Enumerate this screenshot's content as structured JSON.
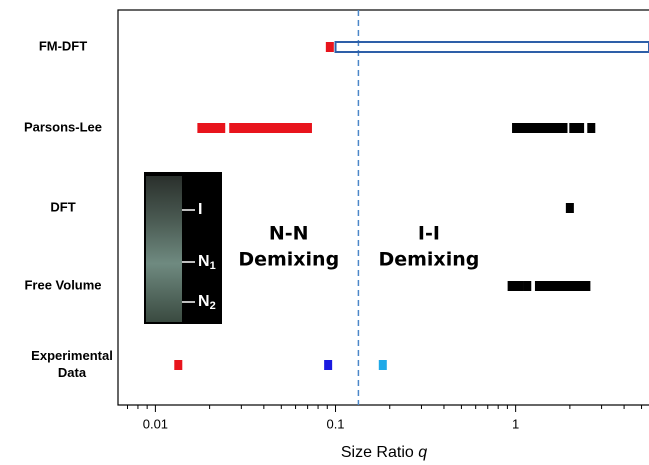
{
  "chart_data": {
    "type": "range-dot",
    "categories": [
      "FM-DFT",
      "Parsons-Lee",
      "DFT",
      "Free Volume",
      [
        "Experimental",
        "Data"
      ]
    ],
    "xlabel": {
      "text": "Size Ratio",
      "variable": "q"
    },
    "xscale": "log",
    "xlim": [
      0.0062,
      5.5
    ],
    "xticks": [
      0.01,
      0.1,
      1
    ],
    "threshold": {
      "x": 0.134,
      "color": "#4a86c8"
    },
    "annotations": [
      {
        "lines": [
          "N-N",
          "Demixing"
        ],
        "x": 0.055,
        "category": 2.5
      },
      {
        "lines": [
          "I-I",
          "Demixing"
        ],
        "x": 0.33,
        "category": 2.5
      }
    ],
    "inset_labels": [
      {
        "main": "I"
      },
      {
        "main": "N",
        "sub": "1"
      },
      {
        "main": "N",
        "sub": "2"
      }
    ],
    "points": [
      {
        "category": 0,
        "x": 0.093,
        "color": "#e8141c"
      },
      {
        "category": 1,
        "x": 0.018,
        "color": "#e8141c"
      },
      {
        "category": 1,
        "x": 0.0194,
        "color": "#e8141c"
      },
      {
        "category": 1,
        "x": 0.0212,
        "color": "#e8141c"
      },
      {
        "category": 1,
        "x": 0.0232,
        "color": "#e8141c"
      },
      {
        "category": 1,
        "x": 2.09,
        "color": "#000000"
      },
      {
        "category": 1,
        "x": 2.28,
        "color": "#000000"
      },
      {
        "category": 1,
        "x": 2.63,
        "color": "#000000"
      },
      {
        "category": 2,
        "x": 2.0,
        "color": "#000000"
      },
      {
        "category": 3,
        "x": 0.95,
        "color": "#000000"
      },
      {
        "category": 3,
        "x": 1.05,
        "color": "#000000"
      },
      {
        "category": 3,
        "x": 1.16,
        "color": "#000000"
      },
      {
        "category": 4,
        "x": 0.0134,
        "color": "#e8141c"
      },
      {
        "category": 4,
        "x": 0.091,
        "color": "#1a1ae0"
      },
      {
        "category": 4,
        "x": 0.183,
        "color": "#1fa9e8"
      }
    ],
    "ranges": [
      {
        "category": 0,
        "x": [
          0.1,
          5.5
        ],
        "color": "#2e5fa8",
        "filled": false
      },
      {
        "category": 1,
        "x": [
          0.0257,
          0.074
        ],
        "color": "#e8141c",
        "filled": true
      },
      {
        "category": 1,
        "x": [
          0.955,
          1.94
        ],
        "color": "#000000",
        "filled": true
      },
      {
        "category": 3,
        "x": [
          1.28,
          2.6
        ],
        "color": "#000000",
        "filled": true
      }
    ]
  }
}
